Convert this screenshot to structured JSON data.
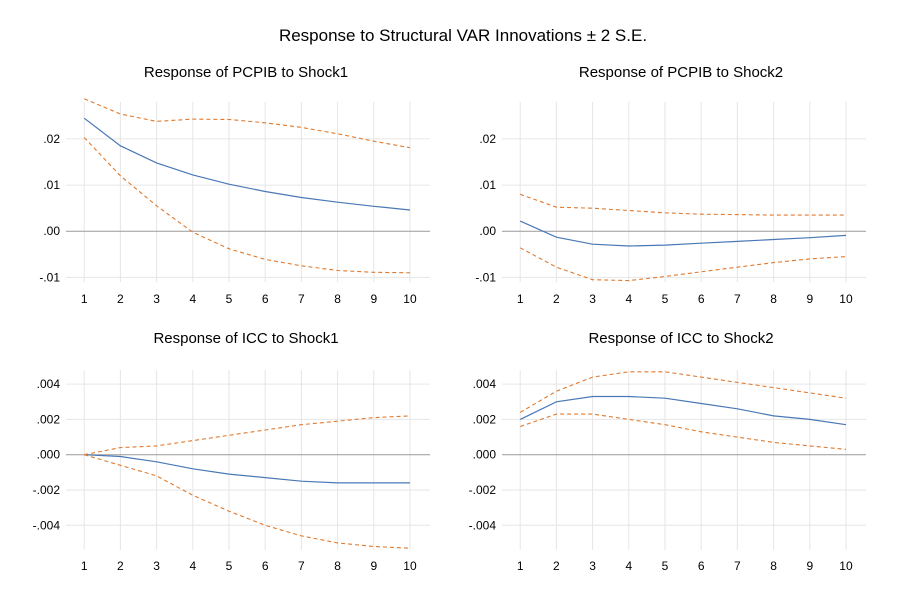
{
  "title": "Response to Structural VAR Innovations ± 2 S.E.",
  "colors": {
    "response": "#4a78b5",
    "band": "#e07a2e"
  },
  "chart_data": [
    {
      "type": "line",
      "title": "Response of PCPIB to Shock1",
      "x": [
        1,
        2,
        3,
        4,
        5,
        6,
        7,
        8,
        9,
        10
      ],
      "ylim": [
        -0.011,
        0.028
      ],
      "yticks": [
        0.02,
        0.01,
        0.0,
        -0.01
      ],
      "ytick_labels": [
        ".02",
        ".01",
        ".00",
        "-.01"
      ],
      "grid": true,
      "series": [
        {
          "role": "response",
          "values": [
            0.0245,
            0.0185,
            0.0148,
            0.0122,
            0.0102,
            0.0086,
            0.0073,
            0.0063,
            0.0054,
            0.0046
          ]
        },
        {
          "role": "upper",
          "values": [
            0.0287,
            0.0254,
            0.0238,
            0.0243,
            0.0242,
            0.0235,
            0.0225,
            0.0211,
            0.0195,
            0.0181
          ]
        },
        {
          "role": "lower",
          "values": [
            0.0203,
            0.012,
            0.0055,
            -0.0002,
            -0.0038,
            -0.0061,
            -0.0075,
            -0.0085,
            -0.0089,
            -0.009
          ]
        }
      ]
    },
    {
      "type": "line",
      "title": "Response of PCPIB to Shock2",
      "x": [
        1,
        2,
        3,
        4,
        5,
        6,
        7,
        8,
        9,
        10
      ],
      "ylim": [
        -0.011,
        0.028
      ],
      "yticks": [
        0.02,
        0.01,
        0.0,
        -0.01
      ],
      "ytick_labels": [
        ".02",
        ".01",
        ".00",
        "-.01"
      ],
      "grid": true,
      "series": [
        {
          "role": "response",
          "values": [
            0.0022,
            -0.0013,
            -0.0028,
            -0.0032,
            -0.003,
            -0.0026,
            -0.0022,
            -0.0018,
            -0.0014,
            -0.0009
          ]
        },
        {
          "role": "upper",
          "values": [
            0.008,
            0.0052,
            0.005,
            0.0045,
            0.004,
            0.0037,
            0.0036,
            0.0035,
            0.0035,
            0.0035
          ]
        },
        {
          "role": "lower",
          "values": [
            -0.0036,
            -0.0078,
            -0.0105,
            -0.0107,
            -0.0098,
            -0.0088,
            -0.0078,
            -0.0068,
            -0.006,
            -0.0055
          ]
        }
      ]
    },
    {
      "type": "line",
      "title": "Response of ICC to Shock1",
      "x": [
        1,
        2,
        3,
        4,
        5,
        6,
        7,
        8,
        9,
        10
      ],
      "ylim": [
        -0.0054,
        0.0048
      ],
      "yticks": [
        0.004,
        0.002,
        0.0,
        -0.002,
        -0.004
      ],
      "ytick_labels": [
        ".004",
        ".002",
        ".000",
        "-.002",
        "-.004"
      ],
      "grid": true,
      "series": [
        {
          "role": "response",
          "values": [
            0.0,
            -0.0001,
            -0.0004,
            -0.0008,
            -0.0011,
            -0.0013,
            -0.0015,
            -0.0016,
            -0.0016,
            -0.0016
          ]
        },
        {
          "role": "upper",
          "values": [
            0.0,
            0.0004,
            0.0005,
            0.0008,
            0.0011,
            0.0014,
            0.0017,
            0.0019,
            0.0021,
            0.0022
          ]
        },
        {
          "role": "lower",
          "values": [
            0.0,
            -0.0006,
            -0.0012,
            -0.0023,
            -0.0032,
            -0.004,
            -0.0046,
            -0.005,
            -0.0052,
            -0.0053
          ]
        }
      ]
    },
    {
      "type": "line",
      "title": "Response of ICC to Shock2",
      "x": [
        1,
        2,
        3,
        4,
        5,
        6,
        7,
        8,
        9,
        10
      ],
      "ylim": [
        -0.0054,
        0.0048
      ],
      "yticks": [
        0.004,
        0.002,
        0.0,
        -0.002,
        -0.004
      ],
      "ytick_labels": [
        ".004",
        ".002",
        ".000",
        "-.002",
        "-.004"
      ],
      "grid": true,
      "series": [
        {
          "role": "response",
          "values": [
            0.002,
            0.003,
            0.0033,
            0.0033,
            0.0032,
            0.0029,
            0.0026,
            0.0022,
            0.002,
            0.0017
          ]
        },
        {
          "role": "upper",
          "values": [
            0.0024,
            0.0036,
            0.0044,
            0.0047,
            0.0047,
            0.0044,
            0.0041,
            0.0038,
            0.0035,
            0.0032
          ]
        },
        {
          "role": "lower",
          "values": [
            0.0016,
            0.0023,
            0.0023,
            0.002,
            0.0017,
            0.0013,
            0.001,
            0.0007,
            0.0005,
            0.0003
          ]
        }
      ]
    }
  ]
}
